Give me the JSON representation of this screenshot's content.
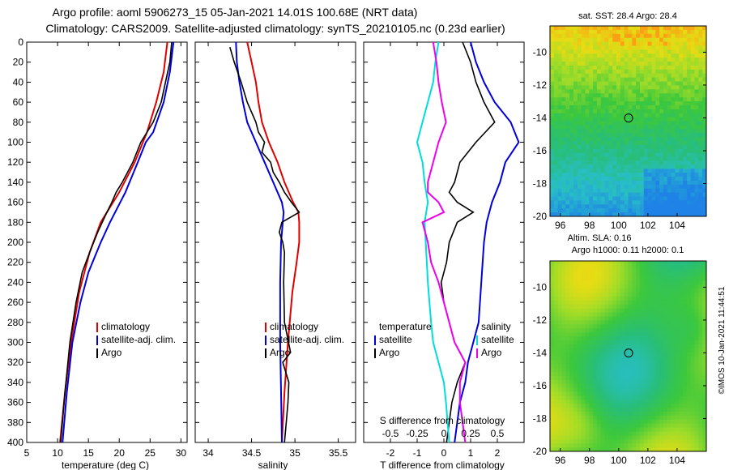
{
  "header": {
    "title_line1": "Argo profile: aoml 5906273_15 05-Jan-2021 14.01S 100.68E (NRT data)",
    "title_line2": "Climatology: CARS2009. Satellite-adjusted climatology: synTS_20210105.nc (0.23d earlier)"
  },
  "colors": {
    "climatology": "#e00000",
    "satellite": "#0000dd",
    "argo": "#000000",
    "sat_salinity": "#00dddd",
    "diff_temperature": "#ee00ee"
  },
  "chart_data": [
    {
      "type": "line",
      "id": "temperature",
      "xlabel": "temperature (deg C)",
      "ylabel": "",
      "xlim": [
        5,
        31
      ],
      "ylim": [
        400,
        0
      ],
      "x_ticks": [
        5,
        10,
        15,
        20,
        25,
        30
      ],
      "y_ticks": [
        0,
        20,
        40,
        60,
        80,
        100,
        120,
        140,
        160,
        180,
        200,
        220,
        240,
        260,
        280,
        300,
        320,
        340,
        360,
        380,
        400
      ],
      "legend": [
        "climatology",
        "satellite-adj. clim.",
        "Argo"
      ],
      "series": [
        {
          "name": "climatology",
          "color": "#e00000",
          "depth": [
            0,
            30,
            60,
            90,
            120,
            150,
            180,
            210,
            250,
            300,
            350,
            400
          ],
          "values": [
            27.8,
            27.2,
            26,
            24.5,
            22.5,
            20,
            17,
            15.2,
            13.5,
            12.2,
            11.2,
            10.4
          ]
        },
        {
          "name": "satellite-adj. clim.",
          "color": "#0000dd",
          "depth": [
            0,
            30,
            60,
            90,
            100,
            120,
            150,
            180,
            200,
            230,
            260,
            300,
            350,
            400
          ],
          "values": [
            28.8,
            28.2,
            27.2,
            25.5,
            24.3,
            23,
            21,
            18.5,
            17,
            15,
            13.7,
            12.4,
            11.5,
            10.8
          ]
        },
        {
          "name": "Argo",
          "color": "#000000",
          "depth": [
            0,
            20,
            40,
            60,
            80,
            90,
            100,
            120,
            140,
            150,
            160,
            170,
            190,
            210,
            230,
            260,
            300,
            350,
            400
          ],
          "values": [
            28.5,
            28.2,
            27.5,
            26.8,
            25.5,
            24.5,
            23.5,
            22.2,
            20.5,
            19.5,
            18.8,
            18,
            16.5,
            15.2,
            14,
            13,
            12,
            11.2,
            10.5
          ]
        }
      ]
    },
    {
      "type": "line",
      "id": "salinity",
      "xlabel": "salinity",
      "ylabel": "",
      "xlim": [
        33.85,
        35.7
      ],
      "ylim": [
        400,
        0
      ],
      "x_ticks": [
        34,
        34.5,
        35,
        35.5
      ],
      "legend": [
        "climatology",
        "satellite-adj. clim.",
        "Argo"
      ],
      "series": [
        {
          "name": "climatology",
          "color": "#e00000",
          "depth": [
            0,
            20,
            40,
            60,
            80,
            100,
            120,
            140,
            160,
            170,
            180,
            200,
            220,
            250,
            300,
            350,
            400
          ],
          "values": [
            34.45,
            34.5,
            34.55,
            34.58,
            34.62,
            34.7,
            34.8,
            34.88,
            34.98,
            35.04,
            35.05,
            35.05,
            35.02,
            34.97,
            34.92,
            34.88,
            34.85
          ]
        },
        {
          "name": "satellite-adj. clim.",
          "color": "#0000dd",
          "depth": [
            0,
            20,
            40,
            60,
            80,
            100,
            120,
            140,
            160,
            170,
            180,
            200,
            240,
            300,
            350,
            400
          ],
          "values": [
            34.32,
            34.33,
            34.36,
            34.4,
            34.45,
            34.55,
            34.65,
            34.75,
            34.85,
            34.87,
            34.86,
            34.84,
            34.83,
            34.83,
            34.84,
            34.85
          ]
        },
        {
          "name": "Argo",
          "color": "#000000",
          "depth": [
            5,
            20,
            40,
            60,
            80,
            90,
            100,
            110,
            120,
            130,
            140,
            150,
            160,
            170,
            180,
            190,
            200,
            210,
            240,
            280,
            310,
            320,
            340,
            360,
            380,
            400
          ],
          "values": [
            34.25,
            34.3,
            34.38,
            34.45,
            34.55,
            34.58,
            34.65,
            34.62,
            34.72,
            34.75,
            34.82,
            34.88,
            34.96,
            35.05,
            34.85,
            34.82,
            34.86,
            34.88,
            34.87,
            34.88,
            34.95,
            34.86,
            34.93,
            34.92,
            34.9,
            34.88
          ]
        }
      ]
    },
    {
      "type": "line",
      "id": "difference",
      "xlabel": "T difference from climatology",
      "x_ticks": [
        -2,
        -1,
        0,
        1,
        2
      ],
      "xlim": [
        -3,
        3
      ],
      "s_axis_label": "S difference from climatology",
      "s_ticks": [
        "-0.5",
        "-0.25",
        "0",
        "0.25",
        "0.5"
      ],
      "ylim": [
        400,
        0
      ],
      "legend_temperature": {
        "heading": "temperature",
        "items": [
          "satellite",
          "Argo"
        ]
      },
      "legend_salinity": {
        "heading": "salinity",
        "items": [
          "satellite",
          "Argo"
        ]
      },
      "series": [
        {
          "name": "temperature satellite",
          "color": "#0000dd",
          "depth": [
            0,
            20,
            40,
            60,
            80,
            100,
            120,
            140,
            160,
            180,
            200,
            240,
            280,
            300,
            320,
            340,
            360,
            400
          ],
          "values": [
            1.0,
            1.2,
            1.5,
            1.9,
            2.5,
            2.8,
            2.3,
            2.1,
            1.8,
            1.6,
            1.5,
            1.4,
            1.3,
            1.1,
            0.9,
            0.8,
            0.6,
            0.4
          ]
        },
        {
          "name": "temperature Argo",
          "color": "#000000",
          "depth": [
            0,
            20,
            40,
            60,
            80,
            100,
            120,
            140,
            150,
            160,
            170,
            180,
            200,
            220,
            240,
            260,
            280,
            300,
            320,
            340,
            360,
            400
          ],
          "values": [
            0.7,
            1.0,
            1.2,
            1.5,
            1.9,
            1.2,
            0.6,
            0.4,
            0.2,
            0.5,
            1.1,
            0.5,
            0.2,
            0.1,
            -0.1,
            0,
            0.2,
            0.4,
            0.8,
            0.5,
            0.3,
            0.1
          ]
        },
        {
          "name": "salinity satellite",
          "color": "#00dddd",
          "depth": [
            0,
            20,
            40,
            60,
            80,
            100,
            120,
            140,
            160,
            180,
            200,
            240,
            280,
            300,
            320,
            340,
            360,
            400
          ],
          "values": [
            -0.05,
            -0.08,
            -0.1,
            -0.15,
            -0.2,
            -0.25,
            -0.2,
            -0.18,
            -0.15,
            -0.18,
            -0.17,
            -0.15,
            -0.12,
            -0.1,
            -0.05,
            0,
            0.02,
            0.05
          ]
        },
        {
          "name": "salinity Argo",
          "color": "#ee00ee",
          "depth": [
            0,
            20,
            40,
            60,
            80,
            100,
            120,
            140,
            150,
            160,
            170,
            180,
            200,
            220,
            240,
            260,
            280,
            300,
            320,
            340,
            360,
            400
          ],
          "values": [
            -0.1,
            -0.07,
            -0.05,
            -0.02,
            0.02,
            -0.05,
            -0.1,
            -0.15,
            -0.15,
            -0.05,
            0,
            -0.2,
            -0.15,
            -0.12,
            -0.05,
            0,
            0.05,
            0.1,
            0.2,
            0.15,
            0.15,
            0.2
          ]
        }
      ]
    },
    {
      "type": "heatmap",
      "id": "sst-map",
      "title": "sat. SST: 28.4 Argo: 28.4",
      "x_ticks": [
        96,
        98,
        100,
        102,
        104
      ],
      "y_ticks": [
        -10,
        -12,
        -14,
        -16,
        -18,
        -20
      ],
      "xlim": [
        95.3,
        106
      ],
      "ylim": [
        -20,
        -8.4
      ],
      "marker": {
        "lon": 100.68,
        "lat": -14.01
      }
    },
    {
      "type": "heatmap",
      "id": "sla-map",
      "title_line1": "Altim. SLA: 0.16",
      "title_line2": "Argo h1000: 0.11 h2000: 0.1",
      "x_ticks": [
        96,
        98,
        100,
        102,
        104
      ],
      "y_ticks": [
        -10,
        -12,
        -14,
        -16,
        -18,
        -20
      ],
      "xlim": [
        95.3,
        106
      ],
      "ylim": [
        -20,
        -8.4
      ],
      "marker": {
        "lon": 100.68,
        "lat": -14.01
      }
    }
  ],
  "credit": "©IMOS 10-Jan-2021 11:44:51"
}
